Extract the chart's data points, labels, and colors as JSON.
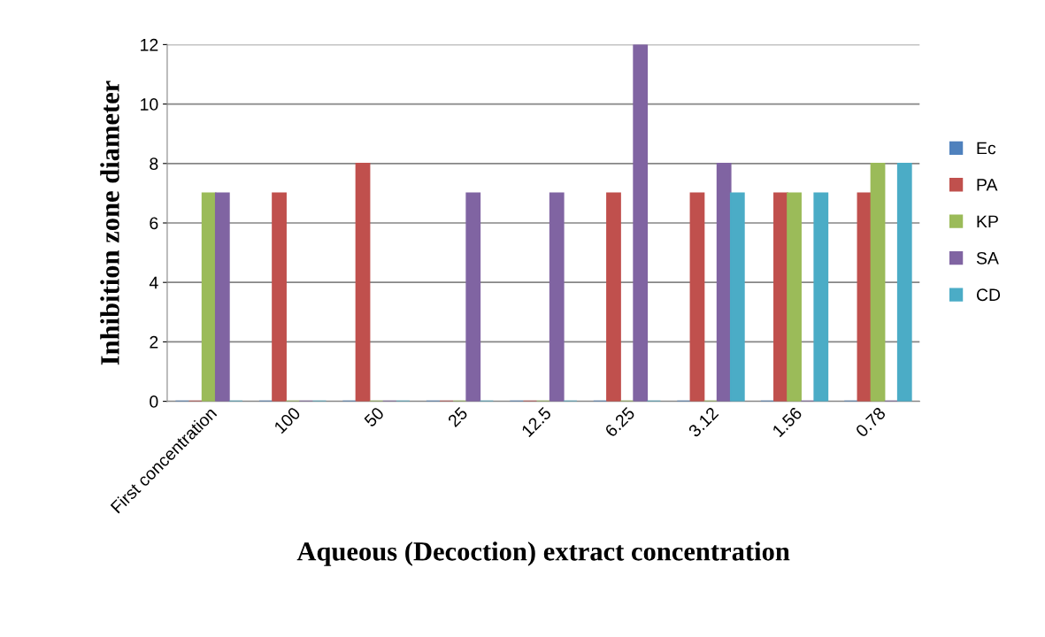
{
  "chart_data": {
    "type": "bar",
    "xlabel": "Aqueous (Decoction) extract concentration",
    "ylabel": "Inhibition zone diameter",
    "categories": [
      "First concentration",
      "100",
      "50",
      "25",
      "12.5",
      "6.25",
      "3.12",
      "1.56",
      "0.78"
    ],
    "series": [
      {
        "name": "Ec",
        "color": "#4f81bd",
        "values": [
          0,
          0,
          0,
          0,
          0,
          0,
          0,
          0,
          0
        ]
      },
      {
        "name": "PA",
        "color": "#c0504d",
        "values": [
          0,
          7,
          8,
          0,
          0,
          7,
          7,
          7,
          7
        ]
      },
      {
        "name": "KP",
        "color": "#9bbb59",
        "values": [
          7,
          0,
          0,
          0,
          0,
          0,
          0,
          7,
          8
        ]
      },
      {
        "name": "SA",
        "color": "#8064a2",
        "values": [
          7,
          0,
          0,
          7,
          7,
          12,
          8,
          0,
          0
        ]
      },
      {
        "name": "CD",
        "color": "#4bacc6",
        "values": [
          0,
          0,
          0,
          0,
          0,
          0,
          7,
          7,
          8
        ]
      }
    ],
    "ylim": [
      0,
      12
    ],
    "yticks": [
      0,
      2,
      4,
      6,
      8,
      10,
      12
    ],
    "grid": "y",
    "legend": "right"
  }
}
